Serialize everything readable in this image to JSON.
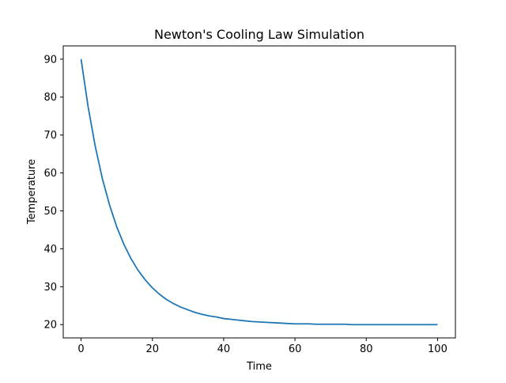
{
  "chart_data": {
    "type": "line",
    "title": "Newton's Cooling Law Simulation",
    "xlabel": "Time",
    "ylabel": "Temperature",
    "xlim": [
      -5,
      105
    ],
    "ylim": [
      16.5,
      93.5
    ],
    "xticks": [
      0,
      20,
      40,
      60,
      80,
      100
    ],
    "yticks": [
      20,
      30,
      40,
      50,
      60,
      70,
      80,
      90
    ],
    "grid": false,
    "series": [
      {
        "color": "#1f77b4",
        "x": [
          0,
          2,
          4,
          6,
          8,
          10,
          12,
          14,
          16,
          18,
          20,
          22,
          24,
          26,
          28,
          30,
          32,
          34,
          36,
          38,
          40,
          42,
          44,
          46,
          48,
          50,
          52,
          54,
          56,
          58,
          60,
          62,
          64,
          66,
          68,
          70,
          72,
          74,
          76,
          78,
          80,
          82,
          84,
          86,
          88,
          90,
          92,
          94,
          96,
          98,
          100
        ],
        "values": [
          90.0,
          77.3,
          66.9,
          58.4,
          51.5,
          45.8,
          41.2,
          37.4,
          34.3,
          31.8,
          29.7,
          28.0,
          26.6,
          25.5,
          24.6,
          23.9,
          23.2,
          22.7,
          22.3,
          22.0,
          21.6,
          21.4,
          21.2,
          21.0,
          20.8,
          20.7,
          20.6,
          20.5,
          20.4,
          20.3,
          20.2,
          20.2,
          20.2,
          20.1,
          20.1,
          20.1,
          20.1,
          20.1,
          20.0,
          20.0,
          20.0,
          20.0,
          20.0,
          20.0,
          20.0,
          20.0,
          20.0,
          20.0,
          20.0,
          20.0,
          20.0
        ]
      }
    ]
  }
}
